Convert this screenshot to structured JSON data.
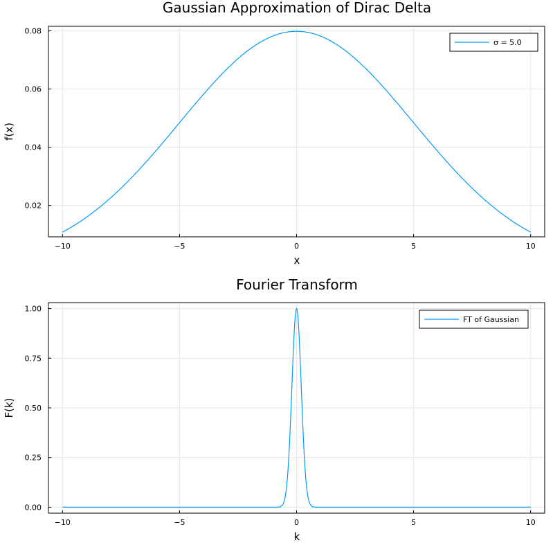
{
  "chart_data": [
    {
      "type": "line",
      "title": "Gaussian Approximation of Dirac Delta",
      "xlabel": "x",
      "ylabel": "f(x)",
      "xlim": [
        -10.6,
        10.6
      ],
      "ylim": [
        0.0092,
        0.0815
      ],
      "xticks": [
        -10,
        -5,
        0,
        5,
        10
      ],
      "xtick_labels": [
        "−10",
        "−5",
        "0",
        "5",
        "10"
      ],
      "yticks": [
        0.02,
        0.04,
        0.06,
        0.08
      ],
      "ytick_labels": [
        "0.02",
        "0.04",
        "0.06",
        "0.08"
      ],
      "grid": true,
      "legend_position": "top-right",
      "series": [
        {
          "name": "σ = 5.0",
          "color": "#009AFA",
          "function": "gaussian",
          "sigma": 5.0,
          "amplitude": 0.0797885,
          "x_range": [
            -10,
            10
          ]
        }
      ]
    },
    {
      "type": "line",
      "title": "Fourier Transform",
      "xlabel": "k",
      "ylabel": "F(k)",
      "xlim": [
        -10.6,
        10.6
      ],
      "ylim": [
        -0.03,
        1.03
      ],
      "xticks": [
        -10,
        -5,
        0,
        5,
        10
      ],
      "xtick_labels": [
        "−10",
        "−5",
        "0",
        "5",
        "10"
      ],
      "yticks": [
        0.0,
        0.25,
        0.5,
        0.75,
        1.0
      ],
      "ytick_labels": [
        "0.00",
        "0.25",
        "0.50",
        "0.75",
        "1.00"
      ],
      "grid": true,
      "legend_position": "top-right",
      "series": [
        {
          "name": "FT of Gaussian",
          "color": "#009AFA",
          "function": "gaussian",
          "sigma": 0.2,
          "amplitude": 1.0,
          "x_range": [
            -10,
            10
          ]
        }
      ]
    }
  ]
}
